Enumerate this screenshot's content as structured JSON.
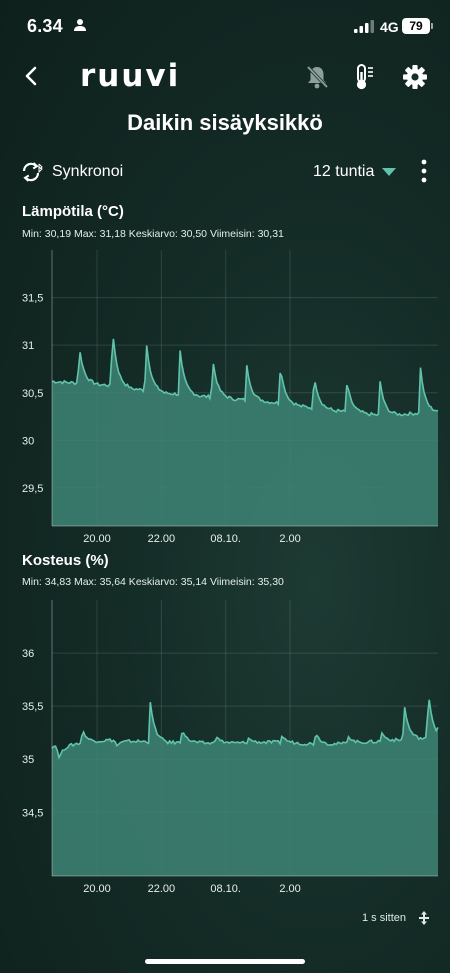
{
  "status_bar": {
    "time": "6.34",
    "network": "4G",
    "battery": "79"
  },
  "toolbar": {
    "logo": "ruuvi"
  },
  "device": {
    "name": "Daikin sisäyksikkö"
  },
  "controls": {
    "sync_label": "Synkronoi",
    "range_label": "12 tuntia"
  },
  "colors": {
    "accent": "#5fc4ab",
    "fill": "#3e8576",
    "background": "#142b26"
  },
  "icons": [
    "person-icon",
    "signal-icon",
    "back-arrow-icon",
    "bell-off-icon",
    "thermometer-icon",
    "gear-icon",
    "sync-bluetooth-icon",
    "caret-down-icon",
    "more-vertical-icon",
    "expand-icon"
  ],
  "footer": {
    "last_update": "1 s sitten"
  },
  "chart_data": [
    {
      "type": "area",
      "title": "Lämpötila (°C)",
      "stats": "Min: 30,19 Max: 31,18 Keskiarvo: 30,50 Viimeisin: 30,31",
      "x_tick_labels": [
        "20.00",
        "22.00",
        "08.10.",
        "2.00"
      ],
      "y_tick_labels": [
        "31,5",
        "31",
        "30,5",
        "30",
        "29,5"
      ],
      "y_ticks": [
        31.5,
        31,
        30.5,
        30,
        29.5
      ],
      "ylim": [
        29.1,
        32.0
      ],
      "x_hours": [
        0,
        12
      ],
      "x_ticks": [
        1.4,
        3.4,
        5.4,
        7.4
      ],
      "baseline": [
        30.62,
        30.58,
        30.5,
        30.45,
        30.4,
        30.32,
        30.26,
        30.3
      ],
      "spikes": [
        {
          "x": 0.85,
          "y": 30.98
        },
        {
          "x": 1.88,
          "y": 31.18
        },
        {
          "x": 2.93,
          "y": 31.05
        },
        {
          "x": 3.98,
          "y": 30.95
        },
        {
          "x": 5.0,
          "y": 30.85
        },
        {
          "x": 6.05,
          "y": 30.8
        },
        {
          "x": 7.1,
          "y": 30.78
        },
        {
          "x": 8.15,
          "y": 30.68
        },
        {
          "x": 9.17,
          "y": 30.62
        },
        {
          "x": 10.2,
          "y": 30.62
        },
        {
          "x": 11.45,
          "y": 30.78
        }
      ]
    },
    {
      "type": "area",
      "title": "Kosteus (%)",
      "stats": "Min: 34,83 Max: 35,64 Keskiarvo: 35,14 Viimeisin: 35,30",
      "x_tick_labels": [
        "20.00",
        "22.00",
        "08.10.",
        "2.00"
      ],
      "y_tick_labels": [
        "36",
        "35,5",
        "35",
        "34,5"
      ],
      "y_ticks": [
        36,
        35.5,
        35,
        34.5
      ],
      "ylim": [
        33.9,
        36.5
      ],
      "x_hours": [
        0,
        12
      ],
      "x_ticks": [
        1.4,
        3.4,
        5.4,
        7.4
      ],
      "baseline": [
        35.12,
        35.18,
        35.16,
        35.15,
        35.16,
        35.14,
        35.17,
        35.2
      ],
      "spikes": [
        {
          "x": 0.2,
          "y": 35.0
        },
        {
          "x": 0.95,
          "y": 35.28
        },
        {
          "x": 2.0,
          "y": 35.12
        },
        {
          "x": 3.05,
          "y": 35.55
        },
        {
          "x": 4.05,
          "y": 35.28
        },
        {
          "x": 5.1,
          "y": 35.22
        },
        {
          "x": 6.1,
          "y": 35.2
        },
        {
          "x": 7.15,
          "y": 35.22
        },
        {
          "x": 8.2,
          "y": 35.25
        },
        {
          "x": 9.2,
          "y": 35.22
        },
        {
          "x": 10.25,
          "y": 35.25
        },
        {
          "x": 10.95,
          "y": 35.52
        },
        {
          "x": 11.7,
          "y": 35.64
        },
        {
          "x": 12.0,
          "y": 35.3
        }
      ]
    }
  ]
}
